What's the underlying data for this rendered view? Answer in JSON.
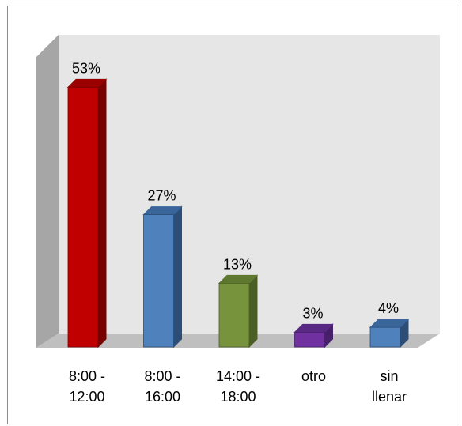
{
  "chart_data": {
    "type": "bar",
    "title": "",
    "xlabel": "",
    "ylabel": "",
    "ylim": [
      0,
      60
    ],
    "grid": false,
    "legend": "none",
    "style": "3d",
    "categories": [
      [
        "8:00 -",
        "12:00"
      ],
      [
        "8:00 -",
        "16:00"
      ],
      [
        "14:00 -",
        "18:00"
      ],
      [
        "otro"
      ],
      [
        "sin",
        "llenar"
      ]
    ],
    "values": [
      53,
      27,
      13,
      3,
      4
    ],
    "data_labels": [
      "53%",
      "27%",
      "13%",
      "3%",
      "4%"
    ],
    "colors": [
      {
        "front": "#c00000",
        "side": "#7a0000",
        "top": "#990000"
      },
      {
        "front": "#4f81bd",
        "side": "#2c4d75",
        "top": "#3a659b"
      },
      {
        "front": "#77933c",
        "side": "#4b5e26",
        "top": "#5f7830"
      },
      {
        "front": "#7030a0",
        "side": "#46206a",
        "top": "#582883"
      },
      {
        "front": "#4f81bd",
        "side": "#2c4d75",
        "top": "#3a659b"
      }
    ],
    "wall_color": "#e6e6e6",
    "floor_color": "#bfbfbf",
    "side_wall_color": "#a6a6a6"
  }
}
